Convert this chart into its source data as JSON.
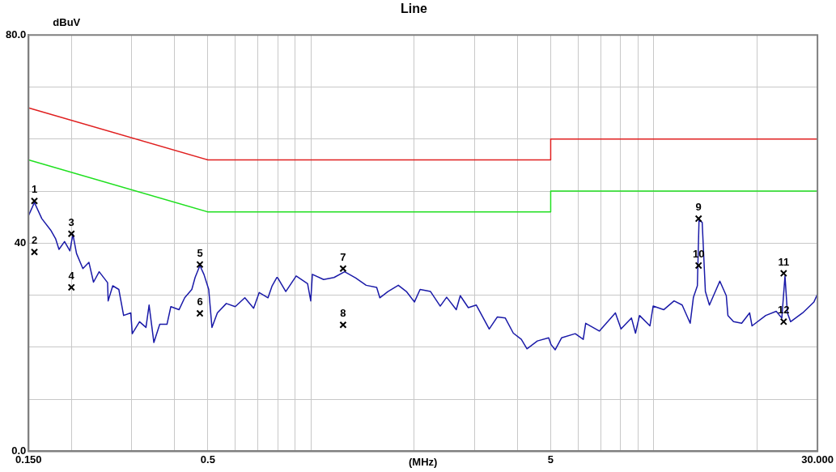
{
  "chart_data": {
    "type": "line",
    "title": "Line",
    "xlabel": "(MHz)",
    "ylabel": "dBuV",
    "log": "x",
    "grid": true,
    "legend": false,
    "xlim": [
      0.15,
      30
    ],
    "xticks": [
      {
        "value": 0.15,
        "label": "0.150"
      },
      {
        "value": 0.2,
        "label": null
      },
      {
        "value": 0.3,
        "label": null
      },
      {
        "value": 0.4,
        "label": null
      },
      {
        "value": 0.5,
        "label": "0.5"
      },
      {
        "value": 0.6,
        "label": null
      },
      {
        "value": 0.7,
        "label": null
      },
      {
        "value": 0.8,
        "label": null
      },
      {
        "value": 0.9,
        "label": null
      },
      {
        "value": 1,
        "label": null
      },
      {
        "value": 2,
        "label": null
      },
      {
        "value": 3,
        "label": null
      },
      {
        "value": 4,
        "label": null
      },
      {
        "value": 5,
        "label": "5"
      },
      {
        "value": 6,
        "label": null
      },
      {
        "value": 7,
        "label": null
      },
      {
        "value": 8,
        "label": null
      },
      {
        "value": 9,
        "label": null
      },
      {
        "value": 10,
        "label": null
      },
      {
        "value": 20,
        "label": null
      },
      {
        "value": 30,
        "label": "30.000"
      }
    ],
    "ylim": [
      0,
      80
    ],
    "yticks": [
      {
        "value": 0,
        "label": "0.0"
      },
      {
        "value": 10,
        "label": null
      },
      {
        "value": 20,
        "label": null
      },
      {
        "value": 30,
        "label": null
      },
      40,
      {
        "value": 50,
        "label": null
      },
      {
        "value": 60,
        "label": null
      },
      {
        "value": 70,
        "label": null
      },
      {
        "value": 80,
        "label": "80.0"
      }
    ],
    "series": [
      {
        "color": "#e02020",
        "x": [
          0.15,
          0.5,
          5,
          5,
          30
        ],
        "values": [
          66,
          56,
          56,
          60,
          60
        ]
      },
      {
        "color": "#20e020",
        "x": [
          0.15,
          0.5,
          5,
          5,
          30
        ],
        "values": [
          56,
          46,
          46,
          50,
          50
        ]
      },
      {
        "color": "#1a1aa8",
        "x": [
          0.15,
          0.156,
          0.164,
          0.174,
          0.18,
          0.184,
          0.191,
          0.198,
          0.202,
          0.207,
          0.216,
          0.225,
          0.232,
          0.241,
          0.255,
          0.256,
          0.264,
          0.275,
          0.284,
          0.298,
          0.301,
          0.316,
          0.33,
          0.337,
          0.348,
          0.362,
          0.38,
          0.39,
          0.412,
          0.428,
          0.449,
          0.459,
          0.474,
          0.487,
          0.503,
          0.514,
          0.533,
          0.566,
          0.601,
          0.641,
          0.68,
          0.706,
          0.749,
          0.77,
          0.795,
          0.8,
          0.844,
          0.905,
          0.977,
          0.998,
          1.009,
          1.088,
          1.167,
          1.253,
          1.35,
          1.448,
          1.554,
          1.587,
          1.676,
          1.797,
          1.897,
          2.003,
          2.08,
          2.231,
          2.381,
          2.486,
          2.652,
          2.724,
          2.875,
          3.034,
          3.309,
          3.492,
          3.686,
          3.89,
          4.105,
          4.264,
          4.573,
          4.933,
          5.013,
          5.152,
          5.378,
          5.895,
          6.222,
          6.325,
          6.931,
          7.721,
          8.019,
          8.602,
          8.838,
          9.079,
          9.738,
          9.95,
          10.68,
          11.45,
          12.09,
          12.76,
          13.04,
          13.39,
          13.54,
          13.83,
          14.13,
          14.52,
          15.57,
          16.26,
          16.44,
          17.07,
          18.03,
          19.02,
          19.33,
          21.2,
          22.74,
          23.61,
          24.12,
          24.51,
          25.04,
          27.16,
          29.3,
          30
        ],
        "values": [
          45.3,
          47.8,
          44.7,
          42.5,
          40.8,
          38.8,
          40.3,
          38.5,
          41.7,
          38.0,
          35.1,
          36.3,
          32.5,
          34.5,
          32.4,
          28.9,
          31.8,
          31.1,
          26.1,
          26.6,
          22.6,
          24.9,
          23.8,
          28.1,
          20.9,
          24.4,
          24.4,
          27.8,
          27.2,
          29.5,
          31.1,
          33.4,
          35.7,
          34.0,
          31.1,
          23.8,
          26.6,
          28.4,
          27.8,
          29.5,
          27.5,
          30.5,
          29.5,
          31.8,
          33.4,
          33.3,
          30.7,
          33.7,
          32.2,
          28.9,
          34.0,
          33.0,
          33.4,
          34.5,
          33.3,
          31.9,
          31.5,
          29.5,
          30.7,
          31.9,
          30.7,
          28.7,
          31.1,
          30.7,
          27.9,
          29.6,
          27.2,
          29.9,
          27.6,
          28.1,
          23.5,
          25.8,
          25.6,
          22.7,
          21.5,
          19.7,
          21.2,
          21.8,
          20.5,
          19.5,
          21.8,
          22.6,
          21.5,
          24.6,
          23.1,
          26.6,
          23.5,
          25.6,
          22.7,
          26.1,
          24.1,
          27.9,
          27.2,
          28.9,
          28.1,
          24.6,
          29.6,
          31.8,
          44.4,
          44.0,
          30.7,
          28.1,
          32.7,
          29.9,
          26.1,
          24.9,
          24.6,
          26.6,
          24.1,
          26.1,
          26.9,
          25.6,
          33.7,
          26.6,
          24.9,
          26.6,
          28.7,
          30.2
        ]
      },
      {
        "type": "scatter",
        "color": "#000000",
        "marker": "cross",
        "x": [
          0.156,
          0.156,
          0.2,
          0.2,
          0.474,
          0.474,
          1.24,
          1.24,
          13.5,
          13.5,
          23.9,
          23.9
        ],
        "values": [
          48.1,
          38.3,
          41.8,
          31.5,
          35.9,
          26.5,
          35.1,
          24.3,
          44.7,
          35.7,
          34.2,
          24.9
        ]
      }
    ],
    "annotations": [
      {
        "text": "1",
        "x": 0.156,
        "y": 48.1
      },
      {
        "text": "2",
        "x": 0.156,
        "y": 38.3
      },
      {
        "text": "3",
        "x": 0.2,
        "y": 41.8
      },
      {
        "text": "4",
        "x": 0.2,
        "y": 31.5
      },
      {
        "text": "5",
        "x": 0.474,
        "y": 35.9
      },
      {
        "text": "6",
        "x": 0.474,
        "y": 26.5
      },
      {
        "text": "7",
        "x": 1.24,
        "y": 35.1
      },
      {
        "text": "8",
        "x": 1.24,
        "y": 24.3
      },
      {
        "text": "9",
        "x": 13.5,
        "y": 44.7
      },
      {
        "text": "10",
        "x": 13.5,
        "y": 35.7
      },
      {
        "text": "11",
        "x": 23.9,
        "y": 34.2
      },
      {
        "text": "12",
        "x": 23.9,
        "y": 24.9
      }
    ]
  }
}
